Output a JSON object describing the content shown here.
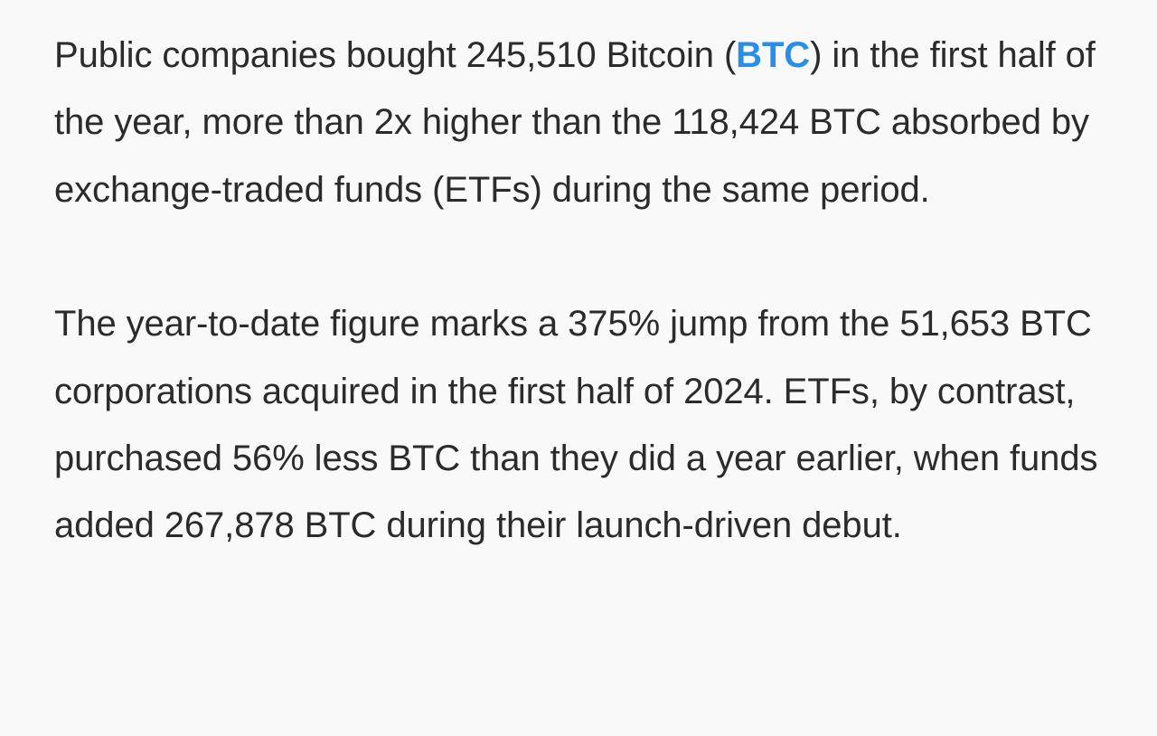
{
  "article": {
    "paragraph_1": {
      "before_link": "Public companies bought 245,510 Bitcoin (",
      "link_text": "BTC",
      "after_link": ") in the first half of the year, more than 2x higher than the 118,424 BTC absorbed by exchange-traded funds (ETFs) during the same period."
    },
    "paragraph_2": {
      "text": "The year-to-date figure marks a 375% jump from the 51,653 BTC corporations acquired in the first half of 2024. ETFs, by contrast, purchased 56% less BTC than they did a year earlier, when funds added 267,878 BTC during their launch-driven debut."
    }
  },
  "colors": {
    "background": "#f9f9f9",
    "text": "#2b2b2b",
    "link": "#2a8de6"
  }
}
